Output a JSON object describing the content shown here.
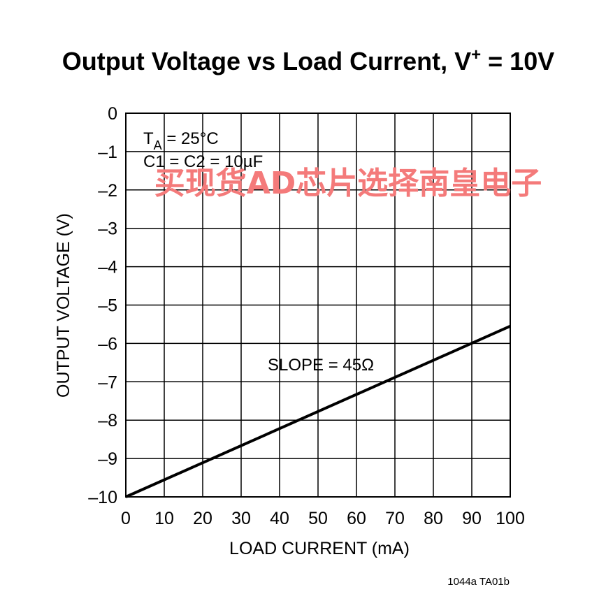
{
  "chart_data": {
    "type": "line",
    "title": "Output Voltage vs Load Current, V",
    "title_sup": "+",
    "title_suffix": " = 10V",
    "xlabel": "LOAD CURRENT (mA)",
    "ylabel": "OUTPUT VOLTAGE (V)",
    "xlim": [
      0,
      100
    ],
    "ylim": [
      -10,
      0
    ],
    "x_ticks": [
      0,
      10,
      20,
      30,
      40,
      50,
      60,
      70,
      80,
      90,
      100
    ],
    "x_tick_labels": [
      "0",
      "10",
      "20",
      "30",
      "40",
      "50",
      "60",
      "70",
      "80",
      "90",
      "100"
    ],
    "y_ticks": [
      0,
      -1,
      -2,
      -3,
      -4,
      -5,
      -6,
      -7,
      -8,
      -9,
      -10
    ],
    "y_tick_labels": [
      "0",
      "–1",
      "–2",
      "–3",
      "–4",
      "–5",
      "–6",
      "–7",
      "–8",
      "–9",
      "–10"
    ],
    "grid": true,
    "series": [
      {
        "x": [
          0,
          100
        ],
        "y": [
          -10,
          -5.55
        ]
      }
    ],
    "annotations": {
      "ta_main": "T",
      "ta_sub": "A",
      "ta_rest": " = 25°C",
      "caps": "C1 = C2 = 10µF",
      "slope": "SLOPE = 45Ω"
    }
  },
  "figure_id": "1044a TA01b",
  "watermark": "买现货AD芯片选择南皇电子",
  "colors": {
    "line": "#000000",
    "grid": "#000000",
    "watermark": "#f47a7a"
  }
}
